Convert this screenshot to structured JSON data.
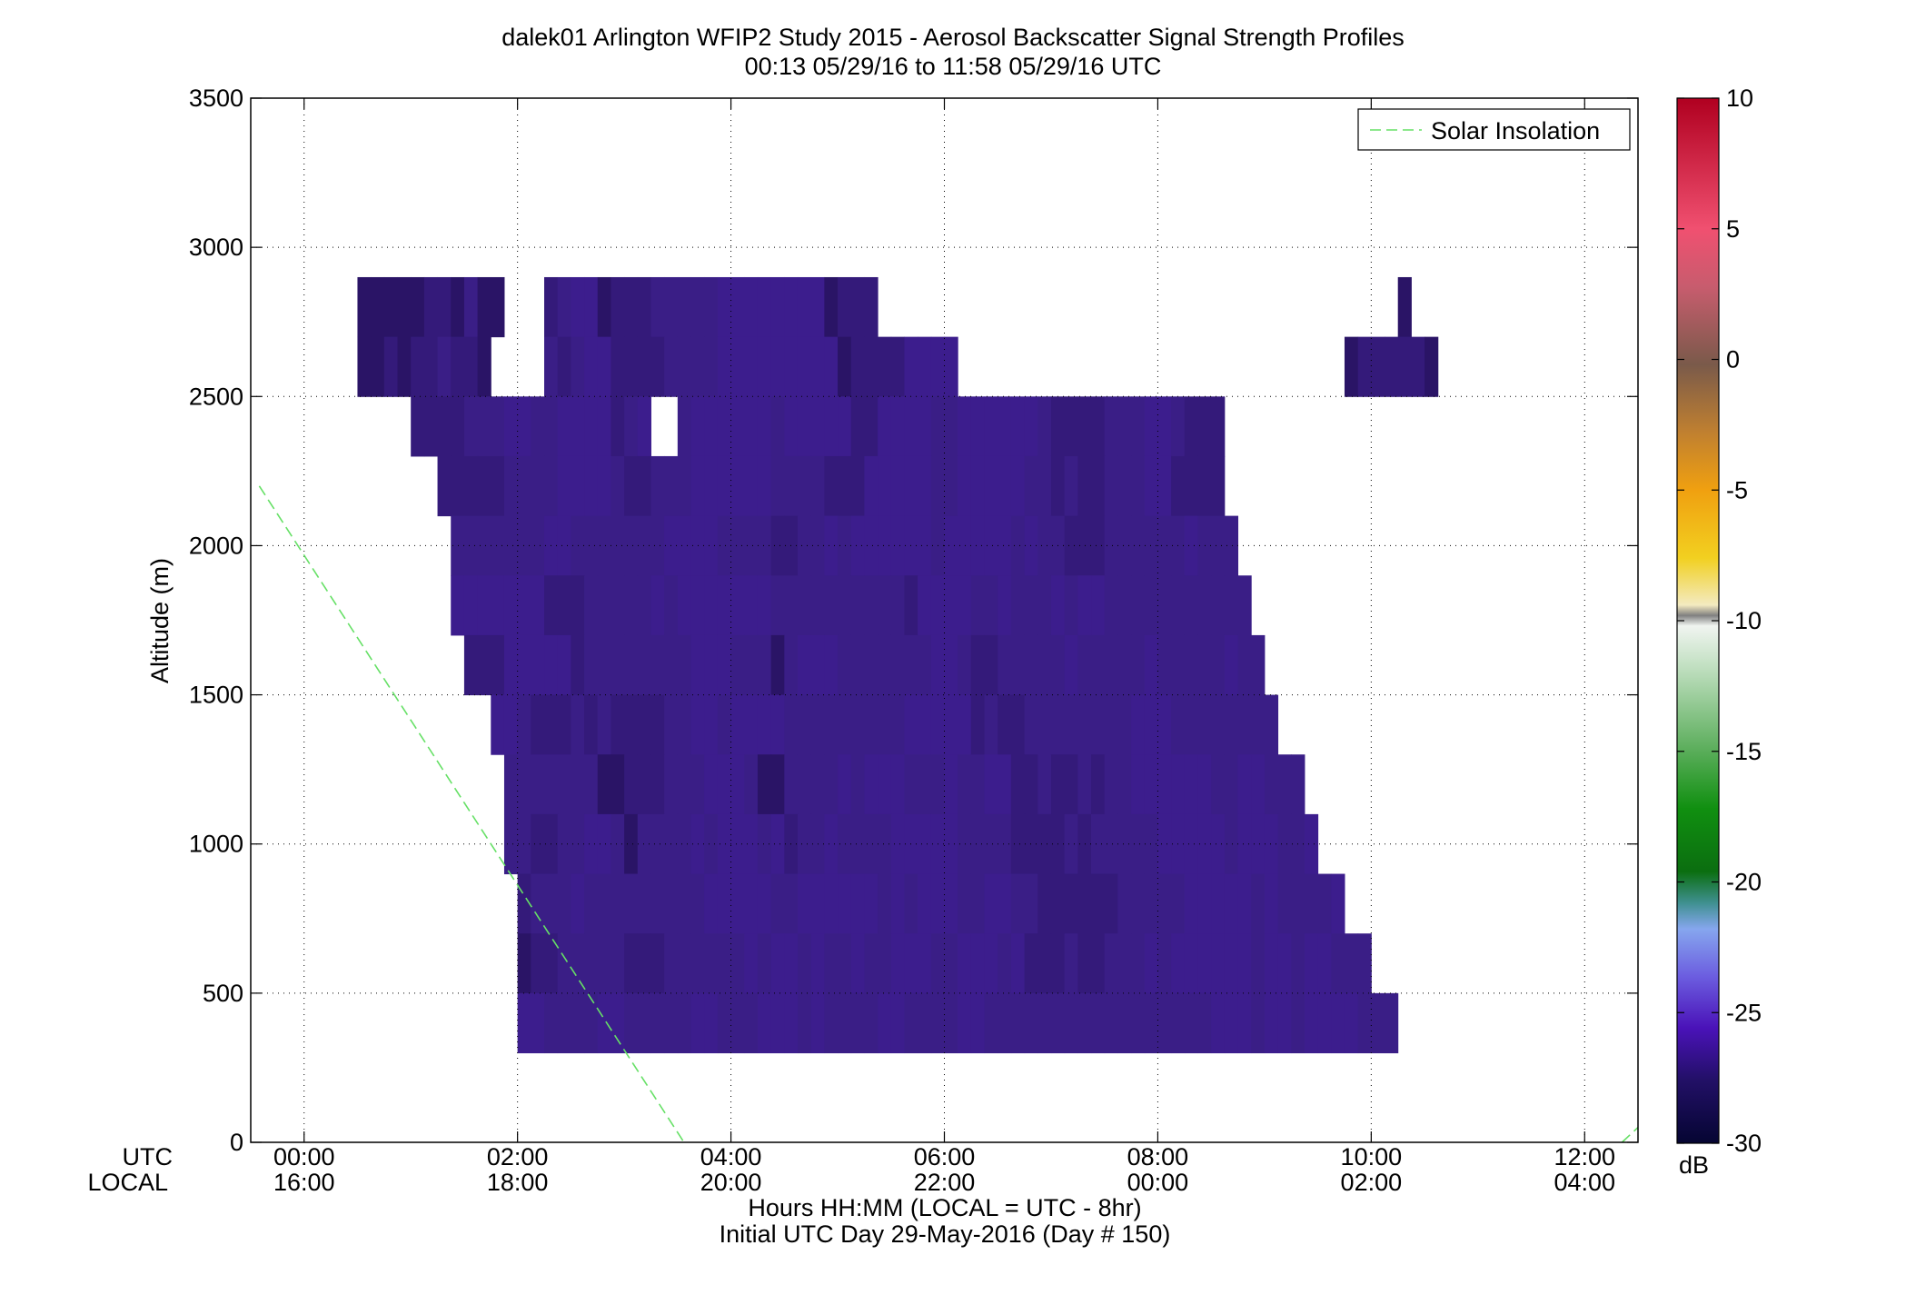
{
  "chart_data": {
    "type": "heatmap",
    "title": "dalek01 Arlington WFIP2 Study 2015 - Aerosol Backscatter Signal Strength Profiles",
    "subtitle": "00:13 05/29/16 to 11:58 05/29/16  UTC",
    "ylabel": "Altitude (m)",
    "xlabel": "Hours HH:MM  (LOCAL = UTC - 8hr)",
    "xlabel2": "Initial UTC Day 29-May-2016 (Day # 150)",
    "xlim_hours": [
      -0.5,
      12.5
    ],
    "ylim": [
      0,
      3500
    ],
    "grid": true,
    "x_row_labels": [
      "UTC",
      "LOCAL"
    ],
    "x_ticks": [
      {
        "hour": 0,
        "utc": "00:00",
        "local": "16:00"
      },
      {
        "hour": 2,
        "utc": "02:00",
        "local": "18:00"
      },
      {
        "hour": 4,
        "utc": "04:00",
        "local": "20:00"
      },
      {
        "hour": 6,
        "utc": "06:00",
        "local": "22:00"
      },
      {
        "hour": 8,
        "utc": "08:00",
        "local": "00:00"
      },
      {
        "hour": 10,
        "utc": "10:00",
        "local": "02:00"
      },
      {
        "hour": 12,
        "utc": "12:00",
        "local": "04:00"
      }
    ],
    "y_ticks": [
      {
        "value": 0,
        "label": "0"
      },
      {
        "value": 500,
        "label": "500"
      },
      {
        "value": 1000,
        "label": "1000"
      },
      {
        "value": 1500,
        "label": "1500"
      },
      {
        "value": 2000,
        "label": "2000"
      },
      {
        "value": 2500,
        "label": "2500"
      },
      {
        "value": 3000,
        "label": "3000"
      },
      {
        "value": 3500,
        "label": "3500"
      }
    ],
    "colorbar": {
      "label": "dB",
      "range": [
        -30,
        10
      ],
      "ticks": [
        {
          "value": 10,
          "label": "10"
        },
        {
          "value": 5,
          "label": "5"
        },
        {
          "value": 0,
          "label": "0"
        },
        {
          "value": -5,
          "label": "-5"
        },
        {
          "value": -10,
          "label": "-10"
        },
        {
          "value": -15,
          "label": "-15"
        },
        {
          "value": -20,
          "label": "-20"
        },
        {
          "value": -25,
          "label": "-25"
        },
        {
          "value": -30,
          "label": "-30"
        }
      ]
    },
    "legend": {
      "label": "Solar Insolation",
      "position": "top-right",
      "color": "#66e066",
      "style": "dashed"
    },
    "solar_insolation_segments": [
      {
        "hours": [
          -0.42,
          3.56
        ],
        "altitude": [
          2200,
          0
        ]
      },
      {
        "hours": [
          12.35,
          12.5
        ],
        "altitude": [
          0,
          50
        ]
      }
    ],
    "heatmap": {
      "x_start_hour": 0.25,
      "x_step_hours": 0.25,
      "y_start_m": 200,
      "y_step_m": 100,
      "value_unit": "dB",
      "missing": null,
      "rows_top_to_bottom": [
        "..........................................................................................",
        "..........................................................................................",
        "..........................................................................................",
        "....KKKKKLLKMKKJJJLMNNKLLLMMMMMNNNNNNNNKLLL.......................................K......",
        "....KKLKLLMLLKJJJJMLMNNLLLLMMMMNNNNNNNNNKLLLLNNNN.............................KLLLLLK......",
        "........LLLLMMMNNMMNNNNLMN..MNNNNNNMNNNNNLLNNNNMMNNNNNNMLLLLMMMNNMLLL......................",
        "..........LLLLLMMMMNNNNMLLMMMNNNNNNMMMMLLLNNNNNMMNNNNNMMLMLLMMMNNLLLL.......................",
        "...........MMMMMMMNNMMMMMMMNNNNMMMMLLMMNMNNNNNNMNNNNNMNMMLLLMMMMMMNMMM.....................",
        "...........NNNNNNNLLLMMMMMNMNNNNNNNMMMMMMMMMMLNNNNMMNMMMNMNNMMMMMMMMMMM....................",
        "............LLLNNNNNLMMMMMMMMNNNMMMKMNNNMMMMMMMNNMLLMMMMMNMMMMMNMMMMMNMM.................",
        "..............NNMLLLMLMLLLLMMNNMNNNNMMMMMMMMMNNNNNLMLLMMMMMMMMNNNMMMMMMMM...............",
        "...............MMMMMMMKKLLLMMMNNNMKKMMMMNMNNNMMMNMMNNLLMLLMLMMNNNNNNMMNNMMM............",
        "...............MMLLMMNNMKMMMMNMNNNMNLMMNMMMMNNNNNMMMMLLLLMLMMMMMNNNNNMNNNMMN..........",
        "................LMMMNMMMMMMMMMNNNNNMMNNNNNNMNMNNNMMNNMMLLLLLLMMMMMNNNNNMNMMMMN.........",
        "................KLLMMMMMLLLMMMMMMNMNNMNMMNMMNNNMMNNNMNLLLMLLMMMNMNNNNNNMNNMNNMMM.......",
        "................NNMMMMNNMMMMMNNMMMNNNMNMMMMNNMMMMNNMMMMMMMMMMMMMMMMMNNNMNNMNNNNMMM....."
      ]
    }
  }
}
